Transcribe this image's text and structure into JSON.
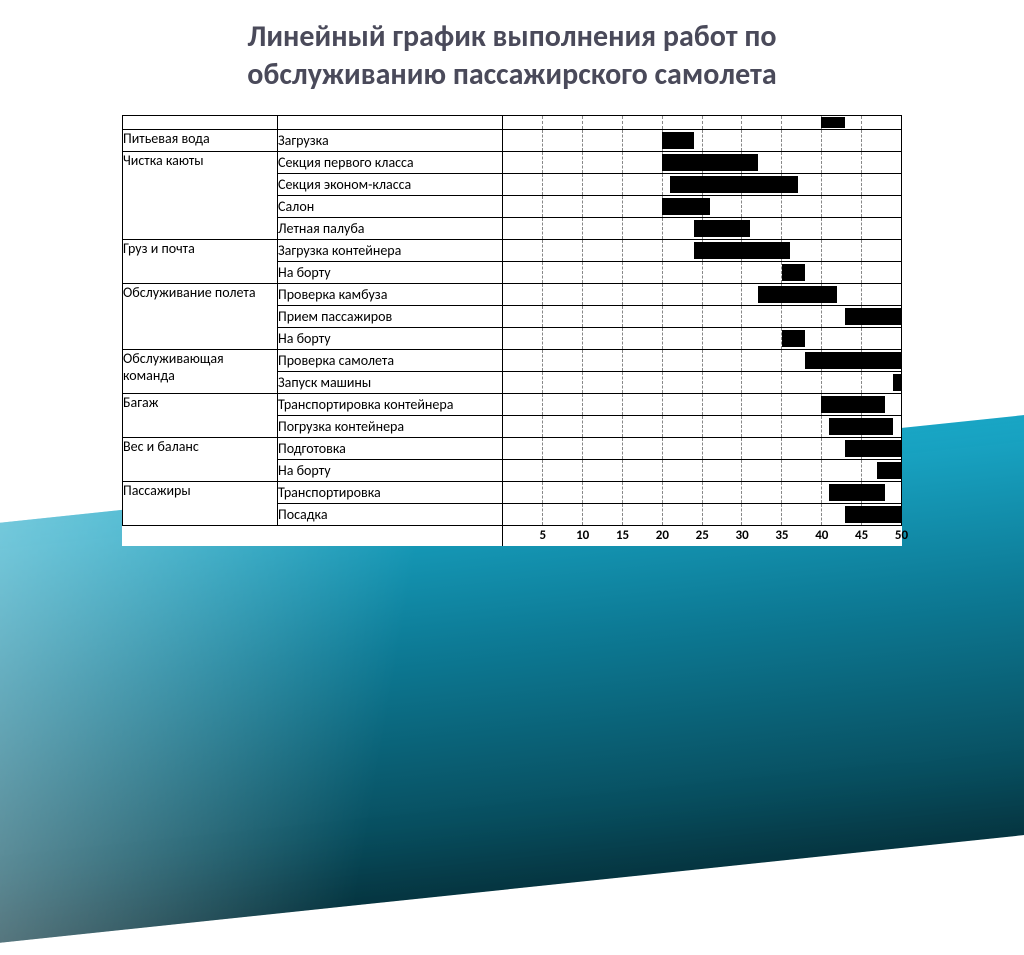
{
  "title_line1": "Линейный график выполнения работ по",
  "title_line2": "обслуживанию пассажирского самолета",
  "title_color": "#4a4a5a",
  "axis": {
    "min": 0,
    "max": 50,
    "ticks": [
      5,
      10,
      15,
      20,
      25,
      30,
      35,
      40,
      45,
      50
    ]
  },
  "bar_color": "#000000",
  "grid_color": "#888888",
  "border_color": "#000000",
  "pre_bar": [
    40,
    43
  ],
  "rows": [
    {
      "category": "Питьевая вода",
      "task": "Загрузка",
      "bars": [
        [
          20,
          24
        ]
      ]
    },
    {
      "category": "Чистка каюты",
      "task": "Секция первого класса",
      "bars": [
        [
          20,
          32
        ]
      ]
    },
    {
      "category": "",
      "task": "Секция эконом-класса",
      "bars": [
        [
          21,
          37
        ]
      ]
    },
    {
      "category": "",
      "task": "Салон",
      "bars": [
        [
          20,
          26
        ]
      ]
    },
    {
      "category": "",
      "task": "Летная палуба",
      "bars": [
        [
          24,
          31
        ]
      ]
    },
    {
      "category": "Груз и почта",
      "task": "Загрузка контейнера",
      "bars": [
        [
          24,
          36
        ]
      ]
    },
    {
      "category": "",
      "task": "На борту",
      "bars": [
        [
          35,
          38
        ]
      ]
    },
    {
      "category": "Обслуживание полета",
      "task": "Проверка камбуза",
      "bars": [
        [
          32,
          42
        ]
      ]
    },
    {
      "category": "",
      "task": "Прием пассажиров",
      "bars": [
        [
          43,
          50
        ]
      ]
    },
    {
      "category": "",
      "task": "На борту",
      "bars": [
        [
          35,
          38
        ]
      ]
    },
    {
      "category": "Обслуживающая команда",
      "task": "Проверка самолета",
      "bars": [
        [
          38,
          50
        ]
      ]
    },
    {
      "category": "",
      "task": "Запуск машины",
      "bars": [
        [
          49,
          50
        ]
      ]
    },
    {
      "category": "Багаж",
      "task": "Транспортировка контейнера",
      "bars": [
        [
          40,
          48
        ]
      ]
    },
    {
      "category": "",
      "task": "Погрузка контейнера",
      "bars": [
        [
          41,
          49
        ]
      ]
    },
    {
      "category": "Вес и баланс",
      "task": "Подготовка",
      "bars": [
        [
          43,
          50
        ]
      ]
    },
    {
      "category": "",
      "task": "На борту",
      "bars": [
        [
          47,
          50
        ]
      ]
    },
    {
      "category": "Пассажиры",
      "task": "Транспортировка",
      "bars": [
        [
          41,
          48
        ]
      ]
    },
    {
      "category": "",
      "task": "Посадка",
      "bars": [
        [
          43,
          50
        ]
      ]
    }
  ],
  "category_spans": [
    1,
    4,
    2,
    3,
    2,
    2,
    2,
    2
  ]
}
